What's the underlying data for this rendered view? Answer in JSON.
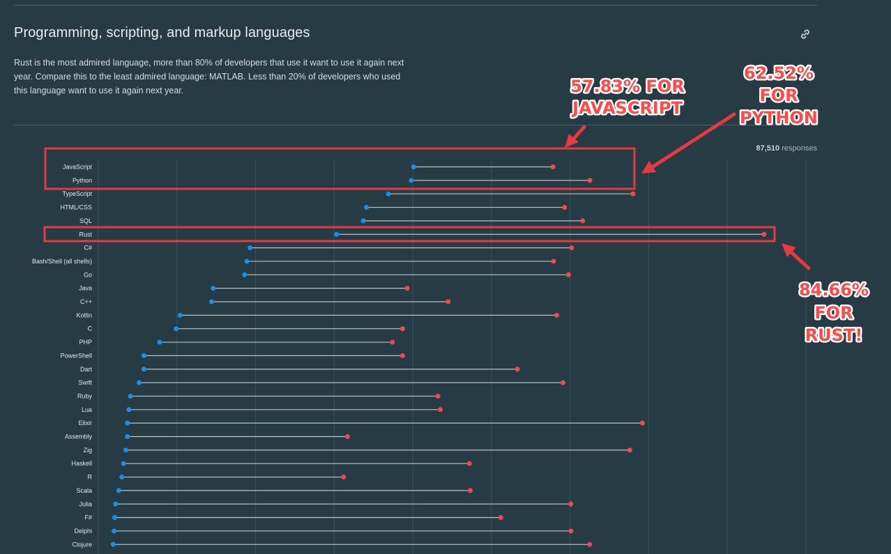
{
  "section": {
    "title": "Programming, scripting, and markup languages",
    "description": "Rust is the most admired language, more than 80% of developers that use it want to use it again next year. Compare this to the least admired language: MATLAB. Less than 20% of developers who used this language want to use it again next year.",
    "link_icon": "link-icon"
  },
  "responses": {
    "count": "87,510",
    "label": "responses"
  },
  "colors": {
    "background": "#273b44",
    "desired_dot": "#1b8fe8",
    "admired_dot": "#f04a4f",
    "connector": "#b9c3c8",
    "annotation": "#e53a3f"
  },
  "annotations": {
    "javascript": {
      "line1": "57.83% FOR",
      "line2": "JAVASCRIPT"
    },
    "python": {
      "line1": "62.52%",
      "line2": "FOR",
      "line3": "PYTHON"
    },
    "rust": {
      "line1": "84.66%",
      "line2": "FOR",
      "line3": "RUST!"
    }
  },
  "chart_data": {
    "type": "dumbbell",
    "title": "",
    "xlabel": "",
    "ylabel": "",
    "xlim": [
      0,
      90
    ],
    "grid": true,
    "series": [
      {
        "name": "",
        "color": "#1b8fe8"
      },
      {
        "name": "",
        "color": "#f04a4f"
      }
    ],
    "categories": [
      "JavaScript",
      "Python",
      "TypeScript",
      "HTML/CSS",
      "SQL",
      "Rust",
      "C#",
      "Bash/Shell (all shells)",
      "Go",
      "Java",
      "C++",
      "Kotlin",
      "C",
      "PHP",
      "PowerShell",
      "Dart",
      "Swift",
      "Ruby",
      "Lua",
      "Elixir",
      "Assembly",
      "Zig",
      "Haskell",
      "R",
      "Scala",
      "Julia",
      "F#",
      "Delphi",
      "Clojure"
    ],
    "start": [
      40.1,
      39.8,
      36.9,
      34.1,
      33.7,
      30.3,
      19.3,
      18.9,
      18.6,
      14.6,
      14.4,
      10.4,
      9.9,
      7.8,
      5.8,
      5.8,
      5.2,
      4.1,
      3.9,
      3.7,
      3.7,
      3.5,
      3.2,
      3.0,
      2.6,
      2.2,
      2.1,
      2.0,
      1.9
    ],
    "end": [
      57.83,
      62.52,
      68.0,
      59.3,
      61.6,
      84.66,
      60.2,
      57.9,
      59.8,
      39.3,
      44.5,
      58.3,
      38.7,
      37.4,
      38.7,
      53.3,
      59.1,
      43.2,
      43.5,
      69.2,
      31.7,
      67.6,
      47.2,
      31.2,
      47.3,
      60.1,
      51.2,
      60.1,
      62.5
    ]
  }
}
